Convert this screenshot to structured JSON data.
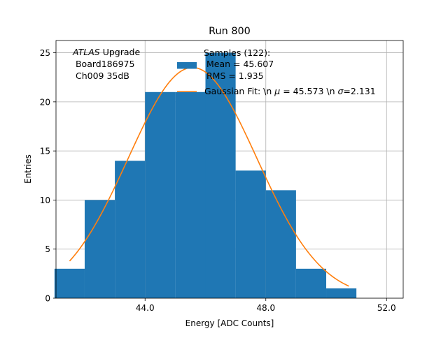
{
  "chart_data": {
    "type": "bar",
    "title": "Run 800",
    "xlabel": "Energy [ADC Counts]",
    "ylabel": "Entries",
    "xlim": [
      41.05,
      52.55
    ],
    "ylim": [
      0,
      26.25
    ],
    "xticks": [
      44.0,
      48.0,
      52.0
    ],
    "xtick_labels": [
      "44.0",
      "48.0",
      "52.0"
    ],
    "yticks": [
      0,
      5,
      10,
      15,
      20,
      25
    ],
    "ytick_labels": [
      "0",
      "5",
      "10",
      "15",
      "20",
      "25"
    ],
    "grid": true,
    "legend_position": "top-center",
    "bin_edges": [
      41.0,
      42.0,
      43.0,
      44.0,
      45.0,
      46.0,
      47.0,
      48.0,
      49.0,
      50.0,
      51.0
    ],
    "values": [
      3,
      10,
      14,
      21,
      21,
      25,
      13,
      11,
      3,
      1
    ],
    "series": [
      {
        "name": "Samples (122):\n Mean = 45.607\n RMS = 1.935",
        "kind": "histogram",
        "color": "#1f77b4"
      },
      {
        "name": "Gaussian Fit: \\n $\\mu$ = 45.573 \\n $\\sigma$=2.131",
        "kind": "line",
        "color": "#ff7f0e",
        "amplitude": 23.5,
        "mu": 45.573,
        "sigma": 2.131,
        "x_range": [
          41.5,
          50.75
        ]
      }
    ],
    "legend": {
      "hist_lines": [
        "Samples (122):",
        " Mean = 45.607",
        " RMS = 1.935"
      ],
      "fit_label_prefix": "Gaussian Fit: \\n ",
      "fit_mu_symbol": "μ",
      "fit_mid": " = 45.573 \\n ",
      "fit_sigma_symbol": "σ",
      "fit_end": "=2.131"
    },
    "annotation": {
      "atlas": "ATLAS",
      "upgrade": " Upgrade",
      "line2": " Board186975",
      "line3": " Ch009 35dB"
    }
  }
}
